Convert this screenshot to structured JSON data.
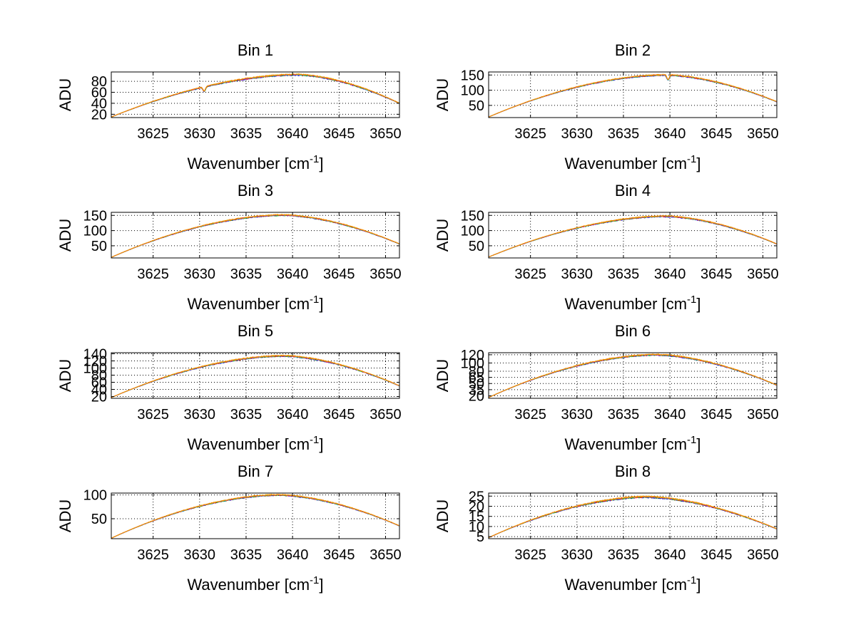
{
  "figure": {
    "background": "#ffffff"
  },
  "series_colors": [
    "#0000ff",
    "#00aa00",
    "#ff0000",
    "#00bfbf",
    "#bf00bf",
    "#bfbf00",
    "#ff8c00"
  ],
  "chart_data": [
    {
      "type": "line",
      "title": "Bin 1",
      "xlabel_main": "Wavenumber [cm",
      "xlabel_sup": "-1",
      "xlabel_end": "]",
      "ylabel": "ADU",
      "xlim": [
        3620.5,
        3651.5
      ],
      "ylim": [
        14,
        97
      ],
      "xticks": [
        3625,
        3630,
        3635,
        3640,
        3645,
        3650
      ],
      "yticks": [
        20,
        40,
        60,
        80
      ],
      "curve": {
        "start": 15,
        "peak": 92,
        "peak_x": 3640.5,
        "end": 40
      },
      "dip": {
        "x": 3630.5,
        "depth": 8
      },
      "noise": 2,
      "grid": true
    },
    {
      "type": "line",
      "title": "Bin 2",
      "xlabel_main": "Wavenumber [cm",
      "xlabel_sup": "-1",
      "xlabel_end": "]",
      "ylabel": "ADU",
      "xlim": [
        3620.5,
        3651.5
      ],
      "ylim": [
        10,
        160
      ],
      "xticks": [
        3625,
        3630,
        3635,
        3640,
        3645,
        3650
      ],
      "yticks": [
        50,
        100,
        150
      ],
      "curve": {
        "start": 12,
        "peak": 150,
        "peak_x": 3639.5,
        "end": 62
      },
      "dip": {
        "x": 3639.8,
        "depth": 16
      },
      "noise": 3,
      "grid": true
    },
    {
      "type": "line",
      "title": "Bin 3",
      "xlabel_main": "Wavenumber [cm",
      "xlabel_sup": "-1",
      "xlabel_end": "]",
      "ylabel": "ADU",
      "xlim": [
        3620.5,
        3651.5
      ],
      "ylim": [
        10,
        160
      ],
      "xticks": [
        3625,
        3630,
        3635,
        3640,
        3645,
        3650
      ],
      "yticks": [
        50,
        100,
        150
      ],
      "curve": {
        "start": 12,
        "peak": 151,
        "peak_x": 3639.0,
        "end": 56
      },
      "dip": null,
      "noise": 3,
      "grid": true
    },
    {
      "type": "line",
      "title": "Bin 4",
      "xlabel_main": "Wavenumber [cm",
      "xlabel_sup": "-1",
      "xlabel_end": "]",
      "ylabel": "ADU",
      "xlim": [
        3620.5,
        3651.5
      ],
      "ylim": [
        10,
        160
      ],
      "xticks": [
        3625,
        3630,
        3635,
        3640,
        3645,
        3650
      ],
      "yticks": [
        50,
        100,
        150
      ],
      "curve": {
        "start": 13,
        "peak": 147,
        "peak_x": 3639.5,
        "end": 56
      },
      "dip": null,
      "noise": 3,
      "grid": true
    },
    {
      "type": "line",
      "title": "Bin 5",
      "xlabel_main": "Wavenumber [cm",
      "xlabel_sup": "-1",
      "xlabel_end": "]",
      "ylabel": "ADU",
      "xlim": [
        3620.5,
        3651.5
      ],
      "ylim": [
        15,
        143
      ],
      "xticks": [
        3625,
        3630,
        3635,
        3640,
        3645,
        3650
      ],
      "yticks": [
        20,
        40,
        60,
        80,
        100,
        120,
        140
      ],
      "ytick_labels": [
        "20",
        "40",
        "60",
        "80",
        "100",
        "120",
        "140"
      ],
      "curve": {
        "start": 17,
        "peak": 134,
        "peak_x": 3639.0,
        "end": 50
      },
      "dip": null,
      "noise": 3,
      "grid": true
    },
    {
      "type": "line",
      "title": "Bin 6",
      "xlabel_main": "Wavenumber [cm",
      "xlabel_sup": "-1",
      "xlabel_end": "]",
      "ylabel": "ADU",
      "xlim": [
        3620.5,
        3651.5
      ],
      "ylim": [
        14,
        125
      ],
      "xticks": [
        3625,
        3630,
        3635,
        3640,
        3645,
        3650
      ],
      "yticks": [
        20,
        35,
        50,
        65,
        80,
        100,
        120
      ],
      "ytick_labels": [
        "20",
        "35",
        "50",
        "65",
        "80",
        "100",
        "120"
      ],
      "curve": {
        "start": 16,
        "peak": 120,
        "peak_x": 3638.5,
        "end": 46
      },
      "dip": null,
      "noise": 2.5,
      "grid": true
    },
    {
      "type": "line",
      "title": "Bin 7",
      "xlabel_main": "Wavenumber [cm",
      "xlabel_sup": "-1",
      "xlabel_end": "]",
      "ylabel": "ADU",
      "xlim": [
        3620.5,
        3651.5
      ],
      "ylim": [
        8,
        104
      ],
      "xticks": [
        3625,
        3630,
        3635,
        3640,
        3645,
        3650
      ],
      "yticks": [
        50,
        100
      ],
      "curve": {
        "start": 9,
        "peak": 100,
        "peak_x": 3638.5,
        "end": 35
      },
      "dip": null,
      "noise": 2,
      "grid": true
    },
    {
      "type": "line",
      "title": "Bin 8",
      "xlabel_main": "Wavenumber [cm",
      "xlabel_sup": "-1",
      "xlabel_end": "]",
      "ylabel": "ADU",
      "xlim": [
        3620.5,
        3651.5
      ],
      "ylim": [
        4,
        26.5
      ],
      "xticks": [
        3625,
        3630,
        3635,
        3640,
        3645,
        3650
      ],
      "yticks": [
        5,
        10,
        15,
        20,
        25
      ],
      "curve": {
        "start": 4.5,
        "peak": 24.6,
        "peak_x": 3637.5,
        "end": 8.8
      },
      "dip": null,
      "noise": 0.6,
      "grid": true
    }
  ]
}
